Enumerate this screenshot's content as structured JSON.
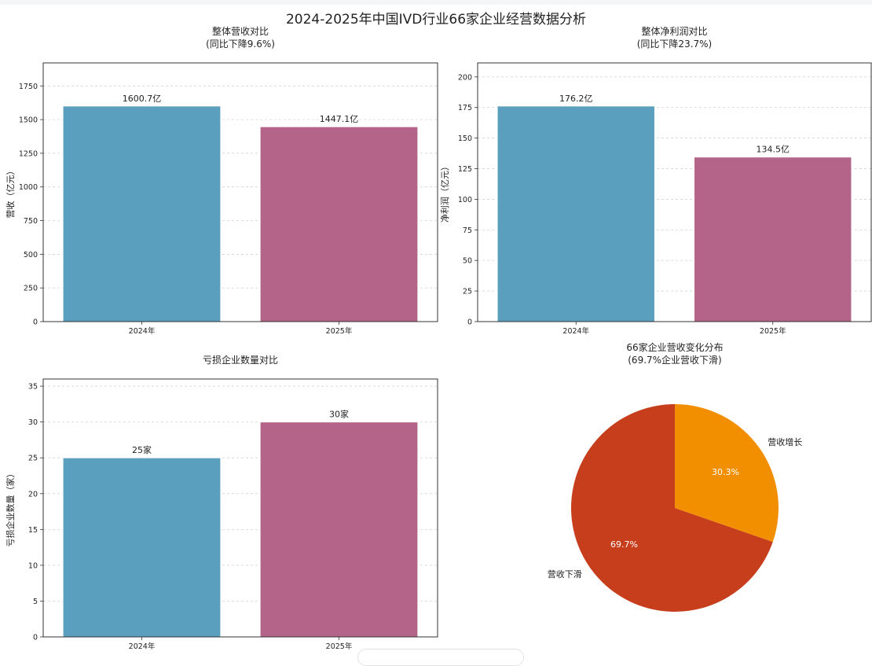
{
  "title": "2024-2025年中国IVD行业66家企业经营数据分析",
  "colors": {
    "bar_2024": "#5a9fbd",
    "bar_2025": "#b46389",
    "pie_decline": "#c73e1d",
    "pie_growth": "#f18f01"
  },
  "chart_data": [
    {
      "type": "bar",
      "title": "整体营收对比",
      "subtitle": "(同比下降9.6%)",
      "ylabel": "营收（亿元）",
      "categories": [
        "2024年",
        "2025年"
      ],
      "values": [
        1600.7,
        1447.1
      ],
      "data_labels": [
        "1600.7亿",
        "1447.1亿"
      ],
      "ylim": [
        0,
        1920.84
      ],
      "yticks": [
        0,
        250,
        500,
        750,
        1000,
        1250,
        1500,
        1750
      ],
      "grid": true
    },
    {
      "type": "bar",
      "title": "整体净利润对比",
      "subtitle": "(同比下降23.7%)",
      "ylabel": "净利润（亿元）",
      "categories": [
        "2024年",
        "2025年"
      ],
      "values": [
        176.2,
        134.5
      ],
      "data_labels": [
        "176.2亿",
        "134.5亿"
      ],
      "ylim": [
        0,
        211.44
      ],
      "yticks": [
        0,
        25,
        50,
        75,
        100,
        125,
        150,
        175,
        200
      ],
      "grid": true
    },
    {
      "type": "bar",
      "title": "亏损企业数量对比",
      "subtitle": "",
      "ylabel": "亏损企业数量（家）",
      "categories": [
        "2024年",
        "2025年"
      ],
      "values": [
        25,
        30
      ],
      "data_labels": [
        "25家",
        "30家"
      ],
      "ylim": [
        0,
        36
      ],
      "yticks": [
        0,
        5,
        10,
        15,
        20,
        25,
        30,
        35
      ],
      "grid": true
    },
    {
      "type": "pie",
      "title": "66家企业营收变化分布",
      "subtitle": "(69.7%企业营收下滑)",
      "labels": [
        "营收下滑",
        "营收增长"
      ],
      "values": [
        69.7,
        30.3
      ],
      "pct_labels": [
        "69.7%",
        "30.3%"
      ]
    }
  ]
}
